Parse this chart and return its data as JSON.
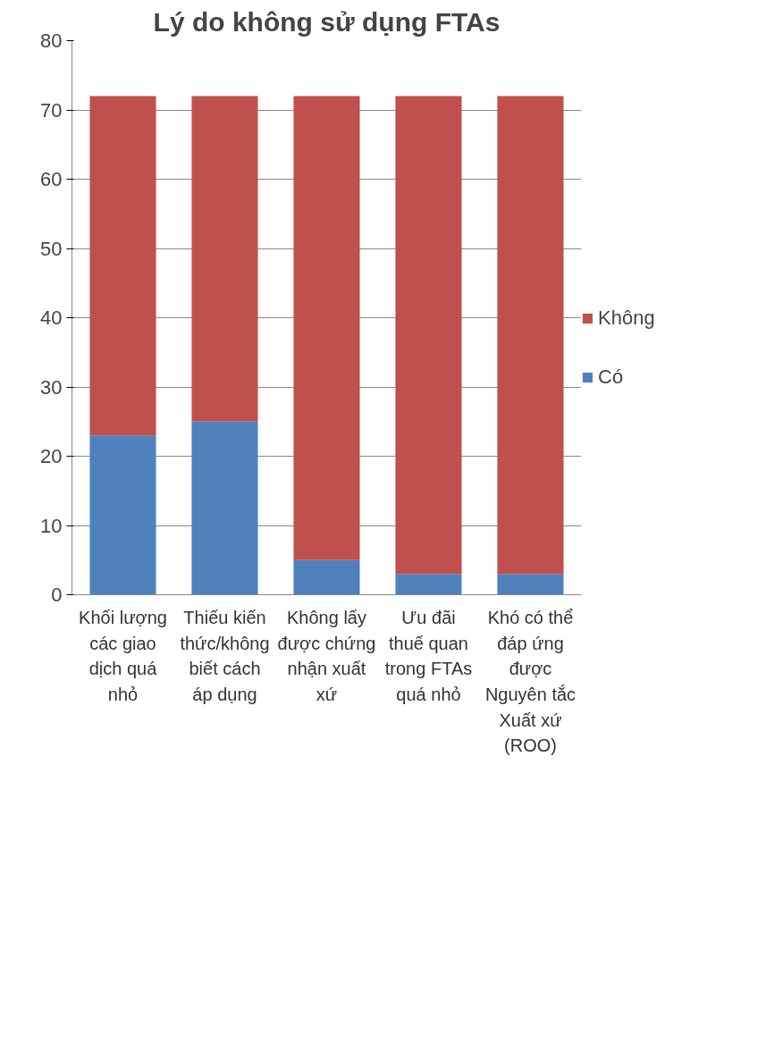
{
  "chart_data": {
    "type": "bar",
    "title": "Lý do không sử dụng FTAs",
    "stacked": true,
    "categories": [
      "Khối lượng các giao dịch quá nhỏ",
      "Thiếu kiến thức/không biết cách áp dụng",
      "Không lấy được chứng nhận xuất xứ",
      "Ưu đãi thuế quan trong FTAs quá nhỏ",
      "Khó có thể đáp ứng được Nguyên tắc Xuất xứ (ROO)"
    ],
    "series": [
      {
        "name": "Có",
        "color": "#4f81bd",
        "values": [
          23,
          25,
          5,
          3,
          3
        ]
      },
      {
        "name": "Không",
        "color": "#c0504d",
        "values": [
          49,
          47,
          67,
          69,
          69
        ]
      }
    ],
    "ylim": [
      0,
      80
    ],
    "yticks": [
      0,
      10,
      20,
      30,
      40,
      50,
      60,
      70,
      80
    ],
    "grid": "y",
    "legend": "right"
  }
}
